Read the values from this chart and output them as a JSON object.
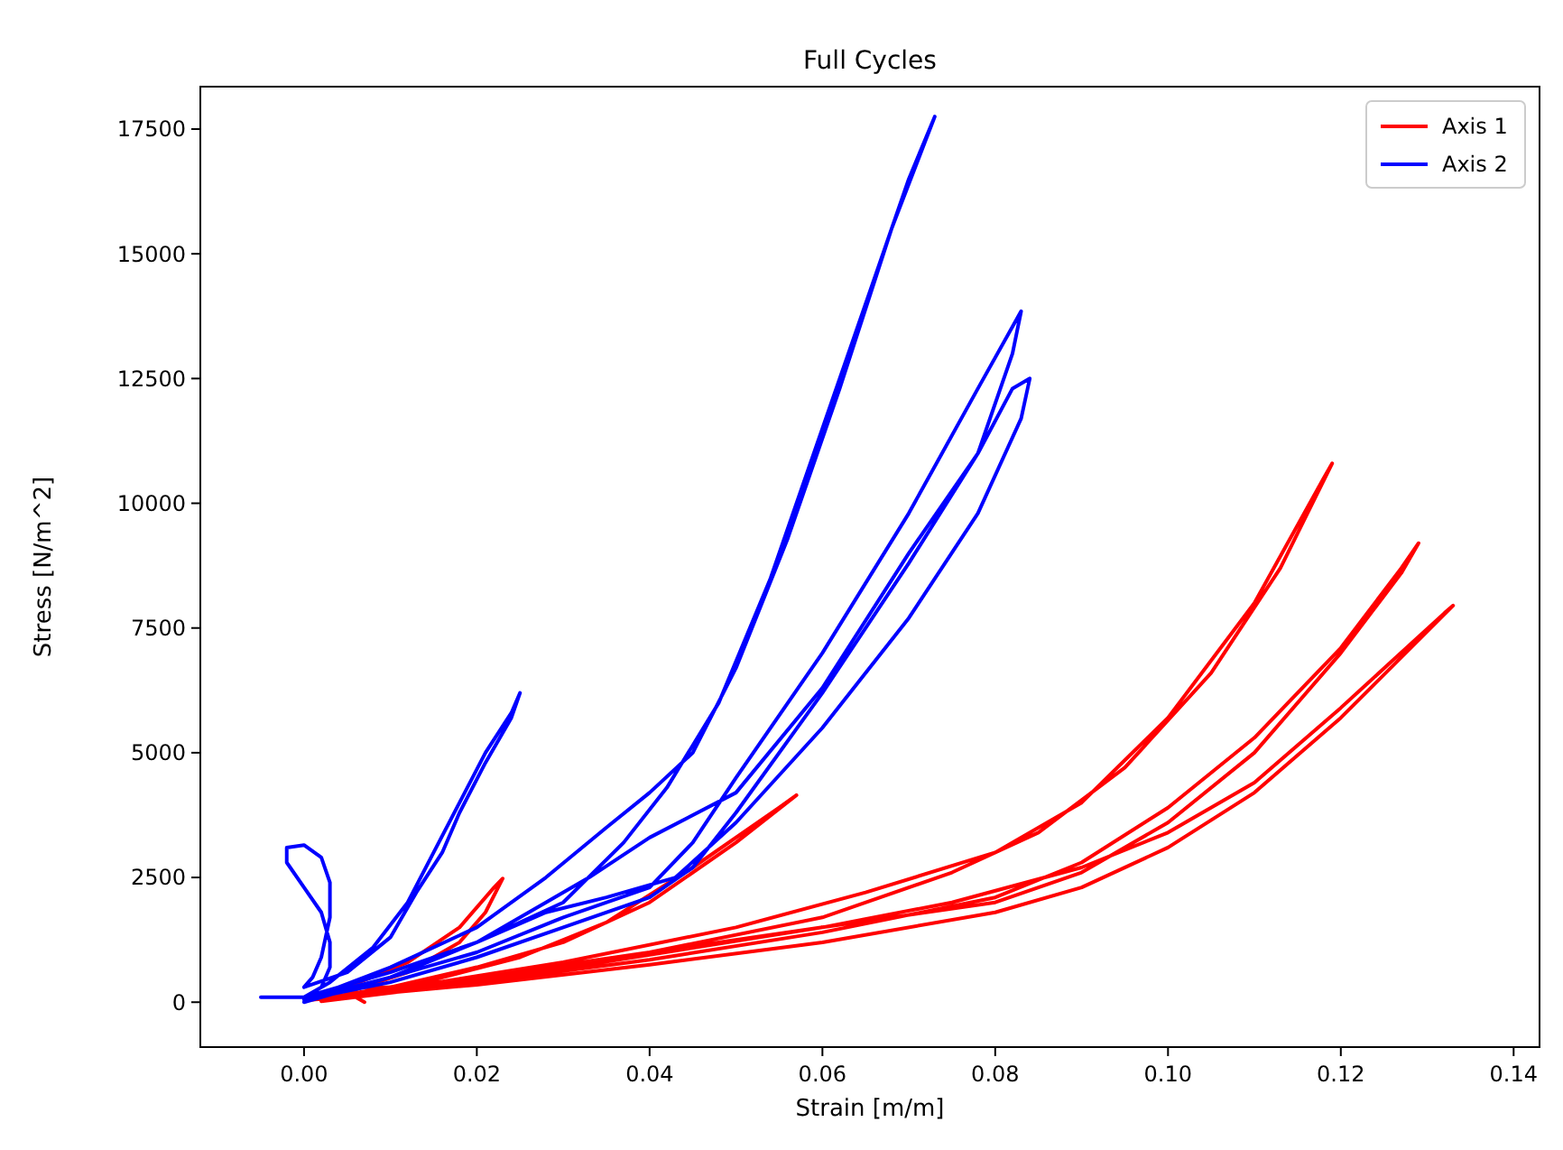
{
  "chart_data": {
    "type": "line",
    "title": "Full Cycles",
    "xlabel": "Strain [m/m]",
    "ylabel": "Stress [N/m^2]",
    "legend": "top right",
    "grid": false,
    "marker": "none",
    "line_style": "solid",
    "xlim": [
      -0.012,
      0.143
    ],
    "ylim": [
      -900,
      18350
    ],
    "xticks": [
      {
        "value": 0,
        "label": "0.00"
      },
      {
        "value": 0.02,
        "label": "0.02"
      },
      {
        "value": 0.04,
        "label": "0.04"
      },
      {
        "value": 0.06,
        "label": "0.06"
      },
      {
        "value": 0.08,
        "label": "0.08"
      },
      {
        "value": 0.1,
        "label": "0.10"
      },
      {
        "value": 0.12,
        "label": "0.12"
      },
      {
        "value": 0.14,
        "label": "0.14"
      }
    ],
    "yticks": [
      0,
      2500,
      5000,
      7500,
      10000,
      12500,
      15000,
      17500
    ],
    "series": [
      {
        "name": "Axis 1",
        "color": "#ff0000",
        "x": [
          0.007,
          0.005,
          0.012,
          0.018,
          0.021,
          0.023,
          0.022,
          0.018,
          0.012,
          0.005,
          0.01,
          0.02,
          0.03,
          0.04,
          0.05,
          0.057,
          0.055,
          0.045,
          0.035,
          0.025,
          0.015,
          0.003,
          0.02,
          0.04,
          0.06,
          0.075,
          0.085,
          0.095,
          0.105,
          0.113,
          0.119,
          0.118,
          0.11,
          0.1,
          0.09,
          0.08,
          0.065,
          0.05,
          0.03,
          0.01,
          0.001,
          0.02,
          0.04,
          0.06,
          0.08,
          0.09,
          0.1,
          0.11,
          0.12,
          0.127,
          0.129,
          0.127,
          0.12,
          0.11,
          0.1,
          0.09,
          0.08,
          0.06,
          0.04,
          0.02,
          0.001,
          0.02,
          0.04,
          0.06,
          0.08,
          0.09,
          0.1,
          0.11,
          0.12,
          0.133,
          0.132,
          0.12,
          0.11,
          0.1,
          0.09,
          0.075,
          0.06,
          0.04,
          0.02,
          0.002
        ],
        "values": [
          0,
          200,
          600,
          1200,
          1800,
          2480,
          2300,
          1500,
          800,
          300,
          300,
          700,
          1200,
          2000,
          3200,
          4150,
          3900,
          2700,
          1600,
          900,
          450,
          100,
          500,
          1000,
          1700,
          2600,
          3400,
          4700,
          6600,
          8700,
          10800,
          10500,
          8000,
          5700,
          4000,
          3000,
          2200,
          1500,
          800,
          250,
          50,
          400,
          850,
          1400,
          2100,
          2800,
          3900,
          5300,
          7100,
          8700,
          9200,
          8600,
          7000,
          5000,
          3600,
          2600,
          2000,
          1500,
          1000,
          450,
          50,
          350,
          750,
          1200,
          1800,
          2300,
          3100,
          4200,
          5700,
          7950,
          7800,
          5900,
          4400,
          3400,
          2700,
          2000,
          1500,
          950,
          400,
          20
        ]
      },
      {
        "name": "Axis 2",
        "color": "#0000ff",
        "x": [
          -0.005,
          0.0,
          0.002,
          0.003,
          0.003,
          0.002,
          0.0,
          -0.002,
          -0.002,
          0.0,
          0.002,
          0.003,
          0.003,
          0.002,
          0.001,
          0.0,
          0.005,
          0.01,
          0.013,
          0.016,
          0.018,
          0.021,
          0.024,
          0.025,
          0.024,
          0.021,
          0.018,
          0.015,
          0.012,
          0.008,
          0.003,
          0.0,
          0.01,
          0.02,
          0.03,
          0.037,
          0.042,
          0.048,
          0.054,
          0.06,
          0.066,
          0.07,
          0.073,
          0.072,
          0.068,
          0.062,
          0.056,
          0.05,
          0.045,
          0.04,
          0.035,
          0.028,
          0.02,
          0.01,
          0.001,
          0.01,
          0.02,
          0.03,
          0.04,
          0.045,
          0.05,
          0.06,
          0.07,
          0.078,
          0.083,
          0.082,
          0.078,
          0.07,
          0.06,
          0.05,
          0.04,
          0.033,
          0.028,
          0.02,
          0.01,
          0.0,
          0.01,
          0.02,
          0.03,
          0.04,
          0.045,
          0.05,
          0.06,
          0.07,
          0.078,
          0.082,
          0.084,
          0.083,
          0.078,
          0.07,
          0.06,
          0.05,
          0.043,
          0.035,
          0.028,
          0.02,
          0.01,
          0.0
        ],
        "values": [
          100,
          100,
          300,
          700,
          1200,
          1800,
          2300,
          2800,
          3100,
          3150,
          2900,
          2400,
          1700,
          900,
          500,
          300,
          600,
          1300,
          2200,
          3000,
          3800,
          4800,
          5700,
          6200,
          5800,
          5000,
          4000,
          3000,
          2000,
          1100,
          400,
          100,
          600,
          1200,
          2000,
          3200,
          4300,
          6000,
          8500,
          11500,
          14500,
          16500,
          17750,
          17300,
          15500,
          12300,
          9300,
          6700,
          5000,
          4200,
          3500,
          2500,
          1500,
          700,
          100,
          500,
          1000,
          1700,
          2300,
          3200,
          4500,
          7000,
          9800,
          12300,
          13850,
          13000,
          11000,
          9000,
          6300,
          4200,
          3300,
          2500,
          2000,
          1200,
          500,
          50,
          400,
          900,
          1500,
          2100,
          2700,
          3800,
          6200,
          8800,
          11000,
          12300,
          12500,
          11700,
          9800,
          7700,
          5500,
          3600,
          2500,
          2100,
          1800,
          1200,
          500,
          0
        ]
      }
    ]
  }
}
